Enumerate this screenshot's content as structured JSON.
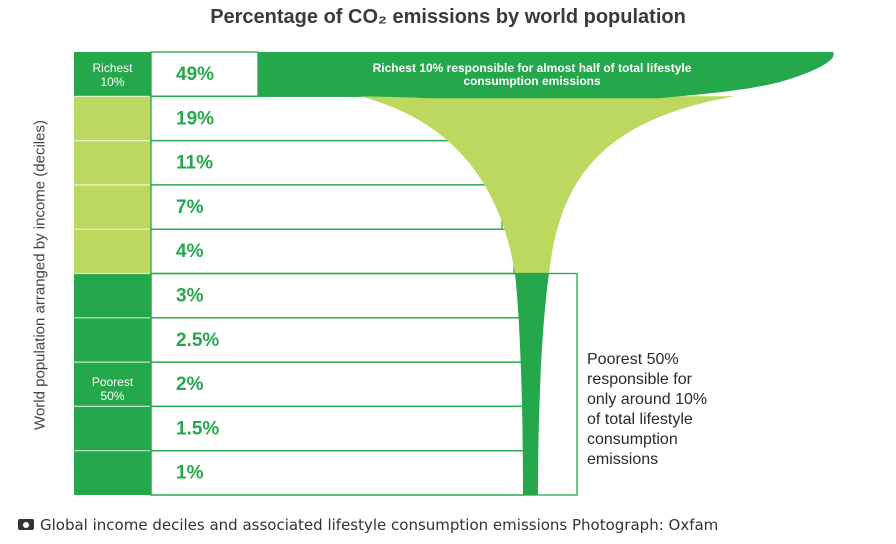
{
  "title": "Percentage of CO₂ emissions by world population",
  "ylabel": "World population arranged by income (deciles)",
  "group_labels": {
    "richest": [
      "Richest",
      "10%"
    ],
    "poorest": [
      "Poorest",
      "50%"
    ]
  },
  "annotations": {
    "richest": [
      "Richest 10% responsible for almost half of total lifestyle",
      "consumption emissions"
    ],
    "poorest": [
      "Poorest 50%",
      "responsible for",
      "only around 10%",
      "of total lifestyle",
      "consumption",
      "emissions"
    ]
  },
  "caption": "Global income deciles and associated lifestyle consumption emissions Photograph: Oxfam",
  "colors": {
    "dark_green": "#25a84b",
    "light_green": "#bcd85f",
    "row_border": "#25a84b",
    "title": "#3a3a3a"
  },
  "chart_data": {
    "type": "bar",
    "title": "Percentage of CO₂ emissions by world population",
    "ylabel": "World population arranged by income (deciles)",
    "categories": [
      "Richest 10%",
      "",
      "",
      "",
      "",
      "",
      "",
      "",
      "",
      "Poorest"
    ],
    "values": [
      49,
      19,
      11,
      7,
      4,
      3,
      2.5,
      2,
      1.5,
      1
    ],
    "value_labels": [
      "49%",
      "19%",
      "11%",
      "7%",
      "4%",
      "3%",
      "2.5%",
      "2%",
      "1.5%",
      "1%"
    ],
    "unit": "%"
  }
}
